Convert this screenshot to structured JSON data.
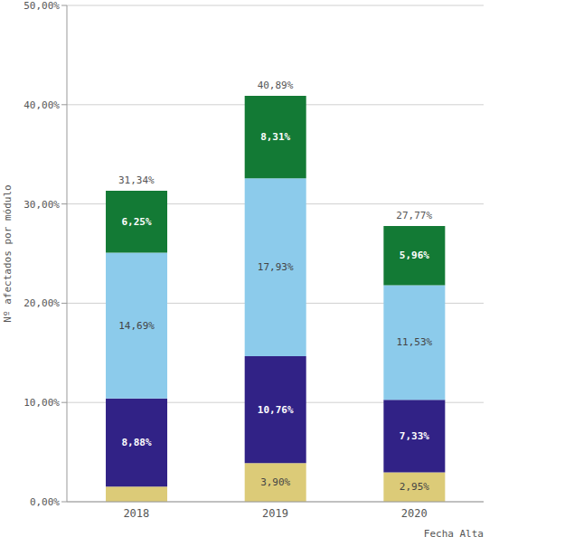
{
  "chart_data": {
    "type": "bar",
    "stacked": true,
    "data_labels": true,
    "grid": true,
    "x_label": "Fecha_Alta",
    "y_label": "Nº afectados por módulo",
    "categories": [
      "2018",
      "2019",
      "2020"
    ],
    "series": [
      {
        "color": "#dccb78",
        "values": [
          1.52,
          3.9,
          2.95
        ],
        "value_labels": [
          null,
          "3,90%",
          "2,95%"
        ]
      },
      {
        "color": "#312286",
        "values": [
          8.88,
          10.76,
          7.33
        ],
        "value_labels": [
          "8,88%",
          "10,76%",
          "7,33%"
        ]
      },
      {
        "color": "#8ccbeb",
        "values": [
          14.69,
          17.93,
          11.53
        ],
        "value_labels": [
          "14,69%",
          "17,93%",
          "11,53%"
        ]
      },
      {
        "color": "#137a35",
        "values": [
          6.25,
          8.31,
          5.96
        ],
        "value_labels": [
          "6,25%",
          "8,31%",
          "5,96%"
        ]
      }
    ],
    "totals": [
      31.34,
      40.89,
      27.77
    ],
    "total_labels": [
      "31,34%",
      "40,89%",
      "27,77%"
    ],
    "ylim": [
      0,
      50
    ],
    "yticks": [
      {
        "value": 0,
        "label": "0,00%"
      },
      {
        "value": 10,
        "label": "10,00%"
      },
      {
        "value": 20,
        "label": "20,00%"
      },
      {
        "value": 30,
        "label": "30,00%"
      },
      {
        "value": 40,
        "label": "40,00%"
      },
      {
        "value": 50,
        "label": "50,00%"
      }
    ]
  }
}
